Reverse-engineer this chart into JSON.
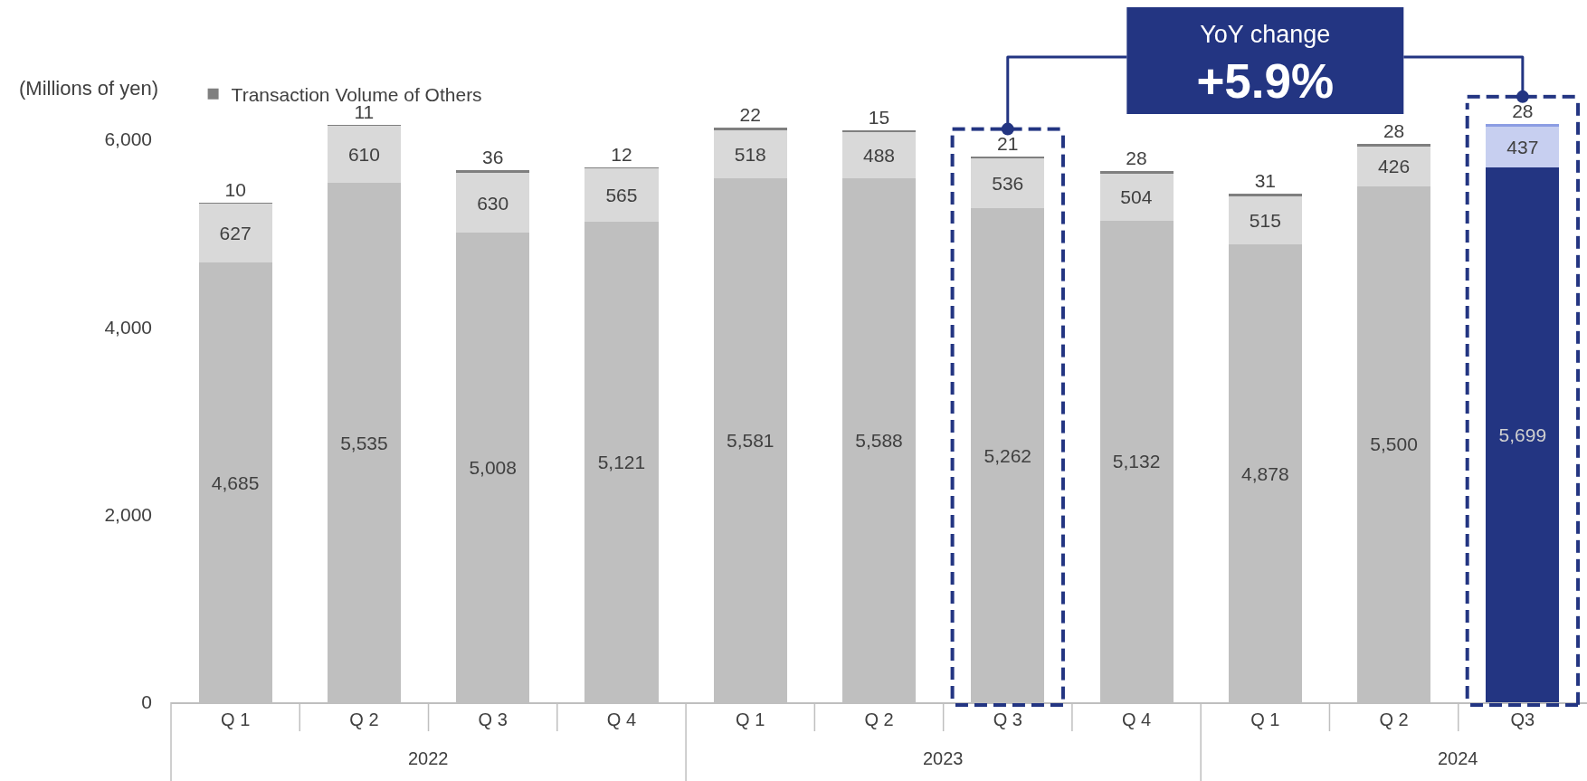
{
  "chart_data": {
    "type": "bar",
    "stacked": true,
    "ylabel": "(Millions of yen)",
    "categories": [
      "Q 1",
      "Q 2",
      "Q 3",
      "Q 4",
      "Q 1",
      "Q 2",
      "Q 3",
      "Q 4",
      "Q 1",
      "Q 2",
      "Q3"
    ],
    "series": [
      {
        "colors": [
          "#bfbfbf",
          "#bfbfbf",
          "#bfbfbf",
          "#bfbfbf",
          "#bfbfbf",
          "#bfbfbf",
          "#bfbfbf",
          "#bfbfbf",
          "#bfbfbf",
          "#bfbfbf",
          "#233582"
        ],
        "values": [
          4685,
          5535,
          5008,
          5121,
          5581,
          5588,
          5262,
          5132,
          4878,
          5500,
          5699
        ],
        "value_labels": [
          "4,685",
          "5,535",
          "5,008",
          "5,121",
          "5,581",
          "5,588",
          "5,262",
          "5,132",
          "4,878",
          "5,500",
          "5,699"
        ]
      },
      {
        "colors": [
          "#d9d9d9",
          "#d9d9d9",
          "#d9d9d9",
          "#d9d9d9",
          "#d9d9d9",
          "#d9d9d9",
          "#d9d9d9",
          "#d9d9d9",
          "#d9d9d9",
          "#d9d9d9",
          "#c7cff0"
        ],
        "values": [
          627,
          610,
          630,
          565,
          518,
          488,
          536,
          504,
          515,
          426,
          437
        ],
        "value_labels": [
          "627",
          "610",
          "630",
          "565",
          "518",
          "488",
          "536",
          "504",
          "515",
          "426",
          "437"
        ]
      },
      {
        "name": "Transaction Volume of Others",
        "colors": [
          "#7f7f7f",
          "#7f7f7f",
          "#7f7f7f",
          "#7f7f7f",
          "#7f7f7f",
          "#7f7f7f",
          "#7f7f7f",
          "#7f7f7f",
          "#7f7f7f",
          "#7f7f7f",
          "#8c9de3"
        ],
        "values": [
          10,
          11,
          36,
          12,
          22,
          15,
          21,
          28,
          31,
          28,
          28
        ],
        "value_labels": [
          "10",
          "11",
          "36",
          "12",
          "22",
          "15",
          "21",
          "28",
          "31",
          "28",
          "28"
        ]
      }
    ],
    "ylim": [
      0,
      6500
    ],
    "yticks": [
      0,
      {
        "value": 2000,
        "label": "2,000"
      },
      {
        "value": 4000,
        "label": "4,000"
      },
      {
        "value": 6000,
        "label": "6,000"
      }
    ],
    "legend": "top left",
    "annotations": [
      "YoY change",
      "+5.9%",
      "2022",
      "2023",
      "2024"
    ]
  }
}
